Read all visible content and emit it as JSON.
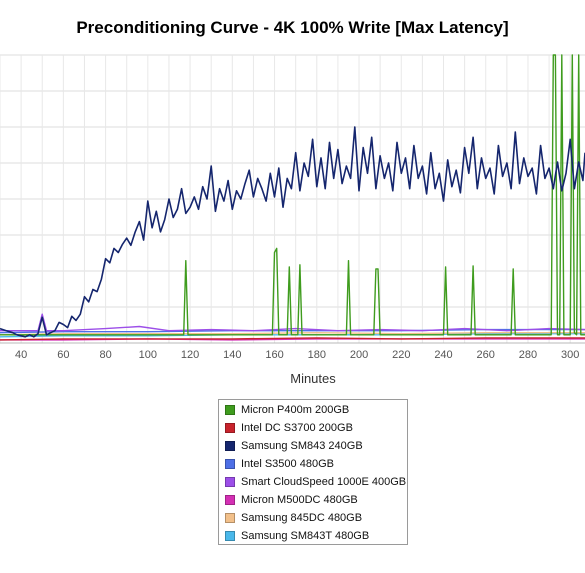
{
  "chart_data": {
    "type": "line",
    "title": "Preconditioning Curve - 4K 100% Write [Max Latency]",
    "xlabel": "Minutes",
    "ylabel": "",
    "x_ticks": [
      40,
      60,
      80,
      100,
      120,
      140,
      160,
      180,
      200,
      220,
      240,
      260,
      280,
      300
    ],
    "xlim": [
      30,
      307
    ],
    "ylim": [
      0,
      280
    ],
    "grid": true,
    "legend_position": "bottom-center",
    "series": [
      {
        "name": "Micron P400m 200GB",
        "color": "#3f9c1e",
        "points": [
          [
            30,
            8
          ],
          [
            117,
            8
          ],
          [
            118,
            80
          ],
          [
            119,
            8
          ],
          [
            159,
            8
          ],
          [
            160,
            88
          ],
          [
            161,
            92
          ],
          [
            162,
            8
          ],
          [
            166,
            8
          ],
          [
            167,
            74
          ],
          [
            168,
            8
          ],
          [
            171,
            8
          ],
          [
            172,
            76
          ],
          [
            173,
            8
          ],
          [
            194,
            8
          ],
          [
            195,
            80
          ],
          [
            196,
            8
          ],
          [
            207,
            8
          ],
          [
            208,
            72
          ],
          [
            209,
            72
          ],
          [
            210,
            8
          ],
          [
            240,
            8
          ],
          [
            241,
            74
          ],
          [
            242,
            8
          ],
          [
            253,
            8
          ],
          [
            254,
            75
          ],
          [
            255,
            8
          ],
          [
            272,
            8
          ],
          [
            273,
            72
          ],
          [
            274,
            8
          ],
          [
            291,
            8
          ],
          [
            292,
            280
          ],
          [
            293,
            280
          ],
          [
            294,
            8
          ],
          [
            295,
            8
          ],
          [
            296,
            280
          ],
          [
            297,
            8
          ],
          [
            300,
            8
          ],
          [
            301,
            280
          ],
          [
            302,
            10
          ],
          [
            303,
            8
          ],
          [
            304,
            280
          ],
          [
            305,
            8
          ],
          [
            307,
            8
          ]
        ]
      },
      {
        "name": "Intel DC S3700 200GB",
        "color": "#c8232c",
        "points": [
          [
            30,
            3
          ],
          [
            60,
            4
          ],
          [
            100,
            4
          ],
          [
            140,
            4
          ],
          [
            180,
            5
          ],
          [
            220,
            4
          ],
          [
            260,
            5
          ],
          [
            307,
            5
          ]
        ]
      },
      {
        "name": "Samsung SM843 240GB",
        "color": "#15266e",
        "points": [
          [
            30,
            14
          ],
          [
            33,
            12
          ],
          [
            36,
            10
          ],
          [
            38,
            8
          ],
          [
            40,
            7
          ],
          [
            42,
            6
          ],
          [
            44,
            8
          ],
          [
            46,
            6
          ],
          [
            48,
            9
          ],
          [
            50,
            25
          ],
          [
            52,
            8
          ],
          [
            54,
            10
          ],
          [
            56,
            12
          ],
          [
            58,
            20
          ],
          [
            60,
            18
          ],
          [
            62,
            15
          ],
          [
            64,
            26
          ],
          [
            66,
            22
          ],
          [
            68,
            28
          ],
          [
            70,
            45
          ],
          [
            72,
            40
          ],
          [
            74,
            52
          ],
          [
            76,
            50
          ],
          [
            78,
            62
          ],
          [
            80,
            82
          ],
          [
            82,
            78
          ],
          [
            84,
            92
          ],
          [
            86,
            88
          ],
          [
            88,
            96
          ],
          [
            90,
            102
          ],
          [
            92,
            95
          ],
          [
            94,
            108
          ],
          [
            96,
            118
          ],
          [
            98,
            100
          ],
          [
            100,
            138
          ],
          [
            102,
            112
          ],
          [
            104,
            128
          ],
          [
            106,
            108
          ],
          [
            108,
            120
          ],
          [
            110,
            140
          ],
          [
            112,
            122
          ],
          [
            114,
            130
          ],
          [
            116,
            150
          ],
          [
            118,
            126
          ],
          [
            120,
            132
          ],
          [
            122,
            142
          ],
          [
            124,
            130
          ],
          [
            126,
            152
          ],
          [
            128,
            140
          ],
          [
            130,
            172
          ],
          [
            132,
            128
          ],
          [
            134,
            150
          ],
          [
            136,
            138
          ],
          [
            138,
            158
          ],
          [
            140,
            130
          ],
          [
            142,
            148
          ],
          [
            144,
            140
          ],
          [
            146,
            155
          ],
          [
            148,
            168
          ],
          [
            150,
            142
          ],
          [
            152,
            160
          ],
          [
            154,
            150
          ],
          [
            156,
            138
          ],
          [
            158,
            165
          ],
          [
            160,
            142
          ],
          [
            162,
            170
          ],
          [
            164,
            132
          ],
          [
            166,
            160
          ],
          [
            168,
            150
          ],
          [
            170,
            185
          ],
          [
            172,
            148
          ],
          [
            174,
            175
          ],
          [
            176,
            162
          ],
          [
            178,
            198
          ],
          [
            180,
            152
          ],
          [
            182,
            180
          ],
          [
            184,
            150
          ],
          [
            186,
            195
          ],
          [
            188,
            160
          ],
          [
            190,
            188
          ],
          [
            192,
            155
          ],
          [
            194,
            172
          ],
          [
            196,
            160
          ],
          [
            198,
            210
          ],
          [
            200,
            148
          ],
          [
            202,
            190
          ],
          [
            204,
            165
          ],
          [
            206,
            200
          ],
          [
            208,
            150
          ],
          [
            210,
            182
          ],
          [
            212,
            160
          ],
          [
            214,
            175
          ],
          [
            216,
            148
          ],
          [
            218,
            195
          ],
          [
            220,
            165
          ],
          [
            222,
            180
          ],
          [
            224,
            150
          ],
          [
            226,
            192
          ],
          [
            228,
            160
          ],
          [
            230,
            172
          ],
          [
            232,
            145
          ],
          [
            234,
            185
          ],
          [
            236,
            150
          ],
          [
            238,
            165
          ],
          [
            240,
            138
          ],
          [
            242,
            178
          ],
          [
            244,
            152
          ],
          [
            246,
            168
          ],
          [
            248,
            146
          ],
          [
            250,
            190
          ],
          [
            252,
            165
          ],
          [
            254,
            200
          ],
          [
            256,
            150
          ],
          [
            258,
            180
          ],
          [
            260,
            160
          ],
          [
            262,
            170
          ],
          [
            264,
            145
          ],
          [
            266,
            192
          ],
          [
            268,
            162
          ],
          [
            270,
            175
          ],
          [
            272,
            150
          ],
          [
            274,
            205
          ],
          [
            276,
            155
          ],
          [
            278,
            180
          ],
          [
            280,
            162
          ],
          [
            282,
            170
          ],
          [
            284,
            145
          ],
          [
            286,
            192
          ],
          [
            288,
            160
          ],
          [
            290,
            170
          ],
          [
            292,
            150
          ],
          [
            294,
            176
          ],
          [
            296,
            148
          ],
          [
            298,
            165
          ],
          [
            300,
            198
          ],
          [
            302,
            150
          ],
          [
            304,
            176
          ],
          [
            306,
            158
          ],
          [
            307,
            185
          ]
        ]
      },
      {
        "name": "Intel S3500 480GB",
        "color": "#4e6fe6",
        "points": [
          [
            30,
            10
          ],
          [
            60,
            11
          ],
          [
            100,
            11
          ],
          [
            140,
            12
          ],
          [
            180,
            12
          ],
          [
            220,
            12
          ],
          [
            260,
            13
          ],
          [
            307,
            13
          ]
        ]
      },
      {
        "name": "Smart CloudSpeed 1000E 400GB",
        "color": "#9c4ee8",
        "points": [
          [
            30,
            12
          ],
          [
            48,
            12
          ],
          [
            50,
            28
          ],
          [
            52,
            12
          ],
          [
            60,
            12
          ],
          [
            80,
            14
          ],
          [
            96,
            16
          ],
          [
            110,
            12
          ],
          [
            130,
            13
          ],
          [
            150,
            12
          ],
          [
            170,
            14
          ],
          [
            190,
            12
          ],
          [
            210,
            13
          ],
          [
            230,
            12
          ],
          [
            250,
            14
          ],
          [
            270,
            12
          ],
          [
            290,
            14
          ],
          [
            307,
            13
          ]
        ]
      },
      {
        "name": "Micron M500DC 480GB",
        "color": "#d42fb4",
        "points": [
          [
            30,
            3
          ],
          [
            60,
            3
          ],
          [
            100,
            4
          ],
          [
            140,
            3
          ],
          [
            180,
            4
          ],
          [
            220,
            4
          ],
          [
            260,
            4
          ],
          [
            307,
            4
          ]
        ]
      },
      {
        "name": "Samsung 845DC 480GB",
        "color": "#f2c08a",
        "points": [
          [
            30,
            8
          ],
          [
            60,
            9
          ],
          [
            100,
            9
          ],
          [
            140,
            9
          ],
          [
            180,
            10
          ],
          [
            220,
            9
          ],
          [
            260,
            10
          ],
          [
            307,
            10
          ]
        ]
      },
      {
        "name": "Samsung SM843T 480GB",
        "color": "#4ab8ea",
        "points": [
          [
            30,
            6
          ],
          [
            60,
            7
          ],
          [
            100,
            7
          ],
          [
            140,
            8
          ],
          [
            180,
            8
          ],
          [
            220,
            8
          ],
          [
            260,
            9
          ],
          [
            307,
            9
          ]
        ]
      }
    ]
  }
}
